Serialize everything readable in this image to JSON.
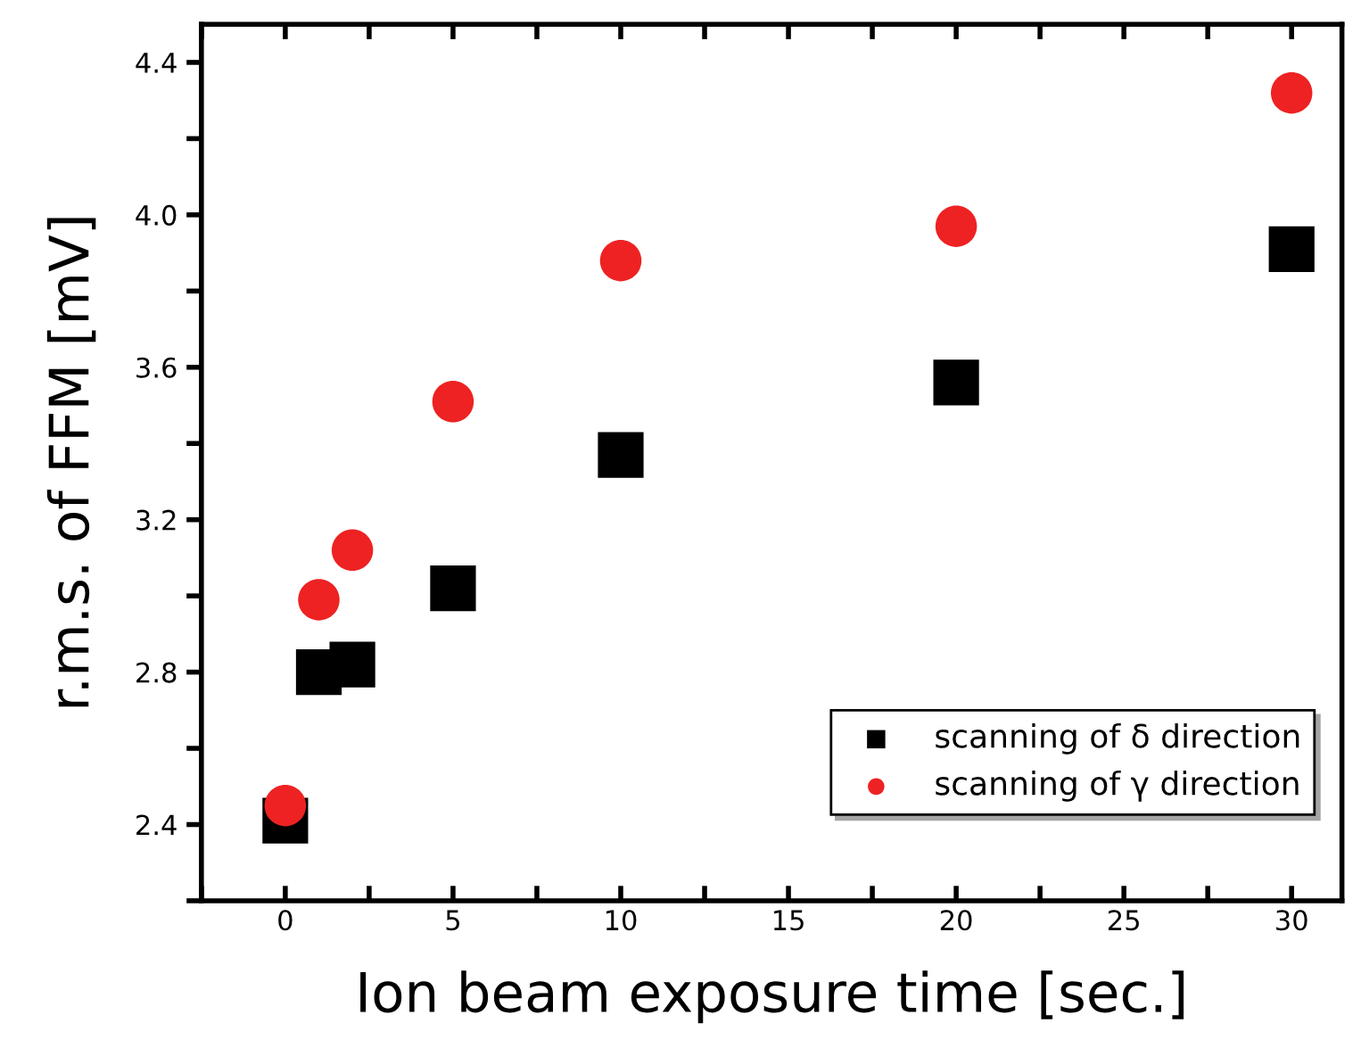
{
  "chart_data": {
    "type": "scatter",
    "xlabel": "Ion beam exposure time [sec.]",
    "ylabel": "r.m.s. of FFM [mV]",
    "x": [
      0,
      1,
      2,
      5,
      10,
      20,
      30
    ],
    "series": [
      {
        "name": "scanning of δ direction",
        "color": "#000000",
        "marker": "square",
        "values": [
          2.41,
          2.8,
          2.82,
          3.02,
          3.37,
          3.56,
          3.91
        ]
      },
      {
        "name": "scanning of γ direction",
        "color": "#ee2222",
        "marker": "circle",
        "values": [
          2.45,
          2.99,
          3.12,
          3.51,
          3.88,
          3.97,
          4.32
        ]
      }
    ],
    "xlim": [
      -2.5,
      31.5
    ],
    "ylim": [
      2.2,
      4.5
    ],
    "xticks": [
      {
        "value": -2.5,
        "label": null
      },
      0,
      {
        "value": 2.5,
        "label": null
      },
      5,
      {
        "value": 7.5,
        "label": null
      },
      10,
      {
        "value": 12.5,
        "label": null
      },
      15,
      {
        "value": 17.5,
        "label": null
      },
      20,
      {
        "value": 22.5,
        "label": null
      },
      25,
      {
        "value": 27.5,
        "label": null
      },
      30
    ],
    "yticks": [
      {
        "value": 2.2,
        "label": null
      },
      2.4,
      {
        "value": 2.6,
        "label": null
      },
      2.8,
      {
        "value": 3.0,
        "label": null
      },
      3.2,
      {
        "value": 3.4,
        "label": null
      },
      3.6,
      {
        "value": 3.8,
        "label": null
      },
      {
        "value": 4.0,
        "label": "4.0"
      },
      {
        "value": 4.2,
        "label": null
      },
      4.4
    ],
    "grid": false,
    "legend": "bottom right"
  }
}
